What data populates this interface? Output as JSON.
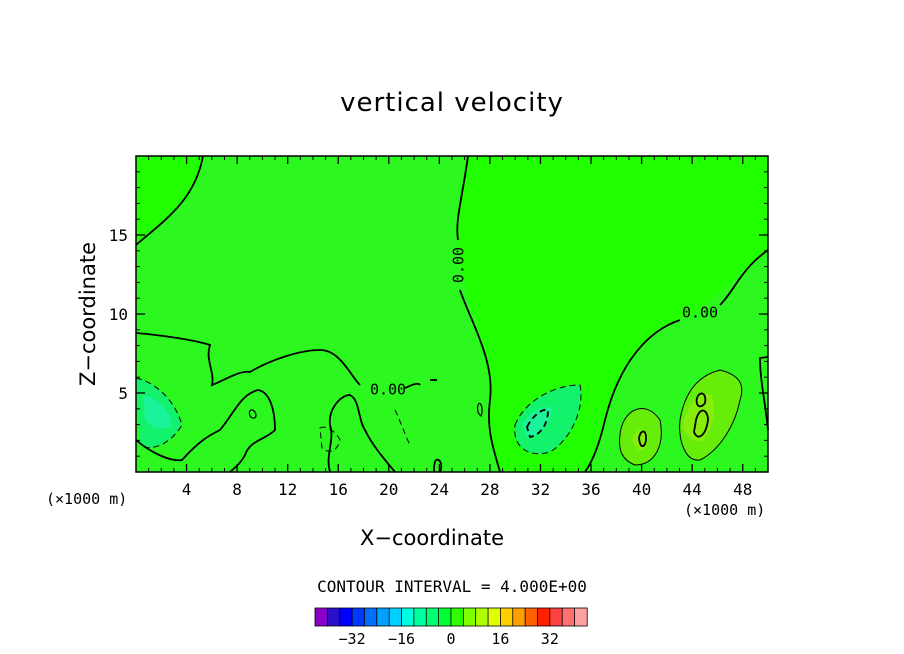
{
  "chart_data": {
    "type": "heatmap",
    "title": "vertical velocity",
    "xlabel": "X−coordinate",
    "ylabel": "Z−coordinate",
    "x_unit_left": "(×1000 m)",
    "x_unit_right": "(×1000 m)",
    "xlim": [
      0,
      50
    ],
    "ylim": [
      0,
      20
    ],
    "x_ticks": [
      4,
      8,
      12,
      16,
      20,
      24,
      28,
      32,
      36,
      40,
      44,
      48
    ],
    "y_ticks": [
      5,
      10,
      15
    ],
    "contour_labels": [
      "0.00",
      "0.00",
      "0.00"
    ],
    "contour_interval_text": "CONTOUR INTERVAL = 4.000E+00",
    "colorbar": {
      "tick_labels": [
        "−32",
        "−16",
        "0",
        "16",
        "32"
      ],
      "tick_values": [
        -32,
        -16,
        0,
        16,
        32
      ],
      "bin_width": 4,
      "colors": [
        "#8a00c8",
        "#2a10c8",
        "#0000ff",
        "#0038ff",
        "#0070ff",
        "#00a0ff",
        "#00d0ff",
        "#00ffe0",
        "#00ffa0",
        "#00ff70",
        "#00ff30",
        "#30ff00",
        "#80ff00",
        "#b0ff00",
        "#e0ff00",
        "#ffd000",
        "#ffa000",
        "#ff6000",
        "#ff2000",
        "#ff4040",
        "#ff7070",
        "#ffa0a0"
      ]
    },
    "background_level_color": "#22ff00",
    "regions": [
      {
        "name": "upper-left-lighter-region",
        "color": "#2cf820"
      },
      {
        "name": "upper-middle-lighter-region",
        "color": "#2cf820"
      },
      {
        "name": "lower-left-negative-region",
        "color": "#12f36b"
      },
      {
        "name": "lower-left-stronger-negative",
        "color": "#1af39a"
      },
      {
        "name": "center-negative-region",
        "color": "#12f36b"
      },
      {
        "name": "center-stronger-negative",
        "color": "#1af39a"
      },
      {
        "name": "right-positive-region",
        "color": "#66ee0a"
      },
      {
        "name": "right-stronger-positive",
        "color": "#86ee0a"
      }
    ]
  }
}
